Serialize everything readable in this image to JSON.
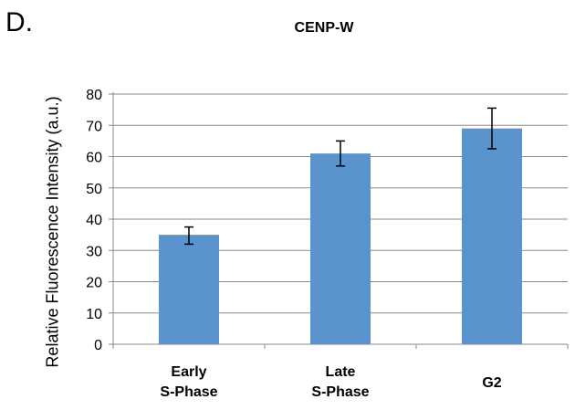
{
  "panel_label": "D.",
  "chart_data": {
    "type": "bar",
    "title": "CENP-W",
    "xlabel": "",
    "ylabel": "Relative Fluorescence Intensity (a.u.)",
    "ylim": [
      0,
      80
    ],
    "yticks": [
      0,
      10,
      20,
      30,
      40,
      50,
      60,
      70,
      80
    ],
    "grid": true,
    "categories": [
      [
        "Early",
        "S-Phase"
      ],
      [
        "Late",
        "S-Phase"
      ],
      [
        "G2"
      ]
    ],
    "values": [
      35,
      61,
      69
    ],
    "error": [
      [
        32,
        37.5
      ],
      [
        57,
        65
      ],
      [
        62.5,
        75.5
      ]
    ],
    "bar_color": "#5b93cd"
  }
}
